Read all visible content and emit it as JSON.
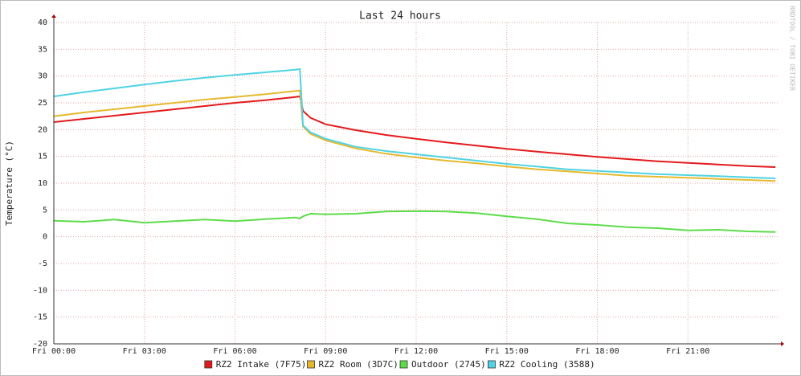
{
  "chart_data": {
    "type": "line",
    "title": "Last 24 hours",
    "y_label": "Temperature (°C)",
    "watermark": "RRDTOOL / TOBI OETIKER",
    "x": [
      0,
      1,
      2,
      3,
      4,
      5,
      6,
      7,
      8,
      8.15,
      8.25,
      8.5,
      9,
      10,
      11,
      12,
      13,
      14,
      15,
      16,
      17,
      18,
      19,
      20,
      21,
      22,
      23,
      23.9
    ],
    "xlim": [
      0,
      24
    ],
    "xticks": [
      {
        "value": 0,
        "label": "Fri 00:00"
      },
      {
        "value": 3,
        "label": "Fri 03:00"
      },
      {
        "value": 6,
        "label": "Fri 06:00"
      },
      {
        "value": 9,
        "label": "Fri 09:00"
      },
      {
        "value": 12,
        "label": "Fri 12:00"
      },
      {
        "value": 15,
        "label": "Fri 15:00"
      },
      {
        "value": 18,
        "label": "Fri 18:00"
      },
      {
        "value": 21,
        "label": "Fri 21:00"
      }
    ],
    "ylim": [
      -20,
      40
    ],
    "yticks": [
      -20,
      -15,
      -10,
      -5,
      0,
      5,
      10,
      15,
      20,
      25,
      30,
      35,
      40
    ],
    "grid": true,
    "legend": "bottom",
    "series": [
      {
        "name": "RZ2 Intake (7F75)",
        "color": "#e31a1c",
        "values": [
          21.4,
          22.0,
          22.6,
          23.2,
          23.8,
          24.4,
          25.0,
          25.5,
          26.1,
          26.2,
          23.5,
          22.2,
          21.0,
          19.9,
          19.0,
          18.3,
          17.6,
          17.0,
          16.4,
          15.9,
          15.4,
          14.9,
          14.5,
          14.1,
          13.8,
          13.5,
          13.2,
          13.0
        ]
      },
      {
        "name": "RZ2 Room (3D7C)",
        "color": "#e5b92e",
        "values": [
          22.5,
          23.2,
          23.8,
          24.4,
          25.0,
          25.6,
          26.1,
          26.6,
          27.2,
          27.3,
          20.6,
          19.2,
          18.0,
          16.5,
          15.5,
          14.8,
          14.2,
          13.7,
          13.1,
          12.6,
          12.2,
          11.8,
          11.4,
          11.2,
          11.0,
          10.8,
          10.6,
          10.4
        ]
      },
      {
        "name": "Outdoor (2745)",
        "color": "#5ddc4a",
        "values": [
          3.0,
          2.8,
          3.2,
          2.6,
          2.9,
          3.2,
          2.9,
          3.3,
          3.6,
          3.4,
          3.8,
          4.3,
          4.2,
          4.3,
          4.7,
          4.8,
          4.7,
          4.4,
          3.8,
          3.3,
          2.5,
          2.2,
          1.8,
          1.6,
          1.2,
          1.3,
          1.0,
          0.9
        ]
      },
      {
        "name": "RZ2 Cooling (3588)",
        "color": "#4fd3e3",
        "values": [
          26.2,
          27.0,
          27.7,
          28.4,
          29.1,
          29.7,
          30.2,
          30.7,
          31.2,
          31.3,
          20.8,
          19.5,
          18.3,
          16.8,
          16.0,
          15.4,
          14.8,
          14.2,
          13.6,
          13.1,
          12.6,
          12.3,
          12.0,
          11.7,
          11.5,
          11.3,
          11.1,
          10.9
        ]
      }
    ]
  }
}
